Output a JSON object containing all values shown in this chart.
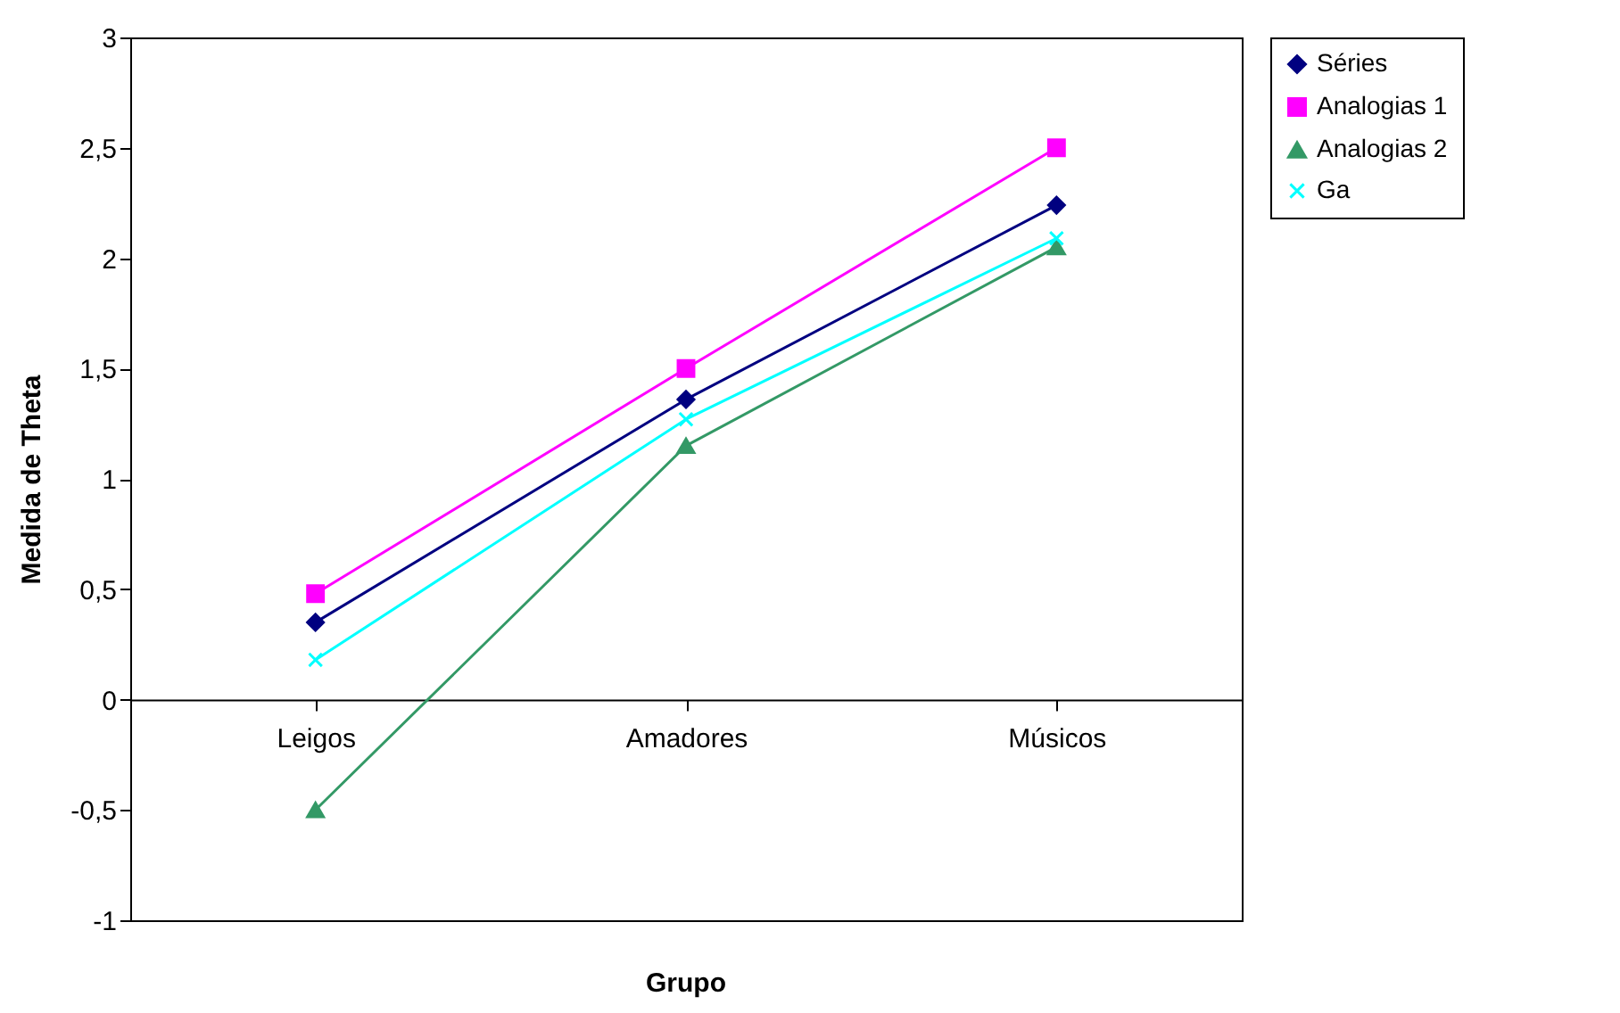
{
  "chart_data": {
    "type": "line",
    "xlabel": "Grupo",
    "ylabel": "Medida de Theta",
    "categories": [
      "Leigos",
      "Amadores",
      "Músicos"
    ],
    "ylim": [
      -1,
      3
    ],
    "yticks": [
      {
        "value": -1,
        "label": "-1"
      },
      {
        "value": -0.5,
        "label": "-0,5"
      },
      {
        "value": 0,
        "label": "0"
      },
      {
        "value": 0.5,
        "label": "0,5"
      },
      {
        "value": 1,
        "label": "1"
      },
      {
        "value": 1.5,
        "label": "1,5"
      },
      {
        "value": 2,
        "label": "2"
      },
      {
        "value": 2.5,
        "label": "2,5"
      },
      {
        "value": 3,
        "label": "3"
      }
    ],
    "grid": false,
    "legend": "right",
    "line_style": "solid",
    "series": [
      {
        "name": "Séries",
        "color": "#000080",
        "marker": "diamond",
        "values": [
          0.35,
          1.36,
          2.24
        ]
      },
      {
        "name": "Analogias 1",
        "color": "#ff00ff",
        "marker": "square",
        "values": [
          0.48,
          1.5,
          2.5
        ]
      },
      {
        "name": "Analogias 2",
        "color": "#339966",
        "marker": "triangle",
        "values": [
          -0.5,
          1.15,
          2.05
        ]
      },
      {
        "name": "Ga",
        "color": "#00ffff",
        "marker": "cross",
        "values": [
          0.18,
          1.27,
          2.09
        ]
      }
    ]
  }
}
